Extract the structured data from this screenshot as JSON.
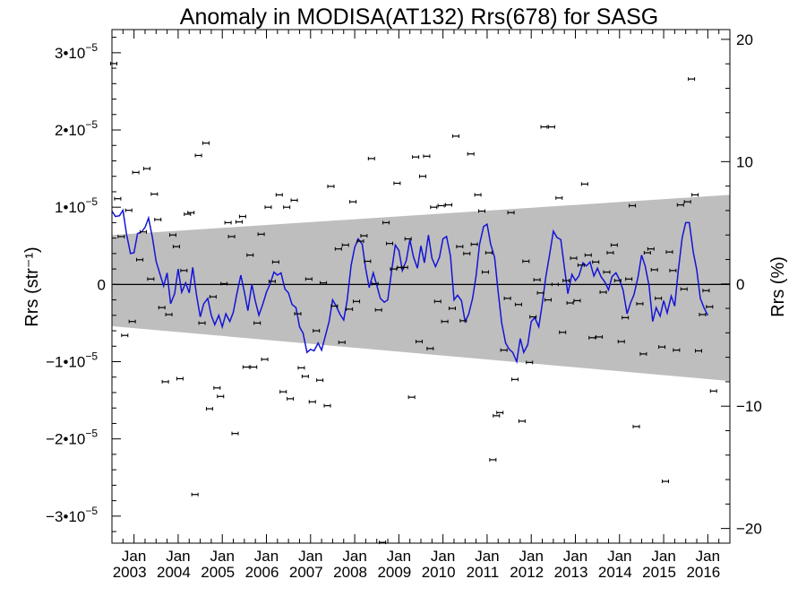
{
  "chart_data": {
    "type": "scatter",
    "title": "Anomaly in MODISA(AT132) Rrs(678) for SASG",
    "ylabel_left": "Rrs (str⁻¹)",
    "ylabel_right": "Rrs (%)",
    "xlim": [
      2002.5,
      2016.5
    ],
    "ylim": [
      -3.35e-05,
      3.3e-05
    ],
    "y2lim": [
      -21.2,
      20.8
    ],
    "x_ticks": [
      {
        "x": 2003.0,
        "month": "Jan",
        "year": "2003"
      },
      {
        "x": 2004.0,
        "month": "Jan",
        "year": "2004"
      },
      {
        "x": 2005.0,
        "month": "Jan",
        "year": "2005"
      },
      {
        "x": 2006.0,
        "month": "Jan",
        "year": "2006"
      },
      {
        "x": 2007.0,
        "month": "Jan",
        "year": "2007"
      },
      {
        "x": 2008.0,
        "month": "Jan",
        "year": "2008"
      },
      {
        "x": 2009.0,
        "month": "Jan",
        "year": "2009"
      },
      {
        "x": 2010.0,
        "month": "Jan",
        "year": "2010"
      },
      {
        "x": 2011.0,
        "month": "Jan",
        "year": "2011"
      },
      {
        "x": 2012.0,
        "month": "Jan",
        "year": "2012"
      },
      {
        "x": 2013.0,
        "month": "Jan",
        "year": "2013"
      },
      {
        "x": 2014.0,
        "month": "Jan",
        "year": "2014"
      },
      {
        "x": 2015.0,
        "month": "Jan",
        "year": "2015"
      },
      {
        "x": 2016.0,
        "month": "Jan",
        "year": "2016"
      }
    ],
    "y_ticks_left": [
      {
        "v": 3e-05,
        "base": "3•10",
        "exp": "−5"
      },
      {
        "v": 2e-05,
        "base": "2•10",
        "exp": "−5"
      },
      {
        "v": 1e-05,
        "base": "1•10",
        "exp": "−5"
      },
      {
        "v": 0,
        "base": "0",
        "exp": ""
      },
      {
        "v": -1e-05,
        "base": "−1•10",
        "exp": "−5"
      },
      {
        "v": -2e-05,
        "base": "−2•10",
        "exp": "−5"
      },
      {
        "v": -3e-05,
        "base": "−3•10",
        "exp": "−5"
      }
    ],
    "y_ticks_right": [
      {
        "v": 20,
        "label": "20"
      },
      {
        "v": 10,
        "label": "10"
      },
      {
        "v": 0,
        "label": "0"
      },
      {
        "v": -10,
        "label": "−10"
      },
      {
        "v": -20,
        "label": "−20"
      }
    ],
    "envelope": {
      "x": [
        2002.5,
        2016.5
      ],
      "upper": [
        6.4e-06,
        1.16e-05
      ],
      "lower": [
        -5.4e-06,
        -1.25e-05
      ]
    },
    "zero_line": 0,
    "points": [
      [
        2002.54,
        2.86e-05
      ],
      [
        2002.63,
        1.11e-05
      ],
      [
        2002.71,
        6.2e-06
      ],
      [
        2002.79,
        -6.6e-06
      ],
      [
        2002.88,
        9.6e-06
      ],
      [
        2002.96,
        -4.8e-06
      ],
      [
        2003.04,
        1.45e-05
      ],
      [
        2003.13,
        3.2e-06
      ],
      [
        2003.21,
        6.8e-06
      ],
      [
        2003.29,
        1.5e-05
      ],
      [
        2003.38,
        7e-07
      ],
      [
        2003.46,
        1.17e-05
      ],
      [
        2003.54,
        8.4e-06
      ],
      [
        2003.63,
        -3e-06
      ],
      [
        2003.71,
        -1.26e-05
      ],
      [
        2003.79,
        -3.9e-06
      ],
      [
        2003.88,
        6.4e-06
      ],
      [
        2003.96,
        4.9e-06
      ],
      [
        2004.04,
        -1.22e-05
      ],
      [
        2004.13,
        1.8e-06
      ],
      [
        2004.21,
        9.1e-06
      ],
      [
        2004.29,
        9.3e-06
      ],
      [
        2004.38,
        -2.72e-05
      ],
      [
        2004.46,
        1.67e-05
      ],
      [
        2004.54,
        -5e-06
      ],
      [
        2004.63,
        1.83e-05
      ],
      [
        2004.71,
        -1.61e-05
      ],
      [
        2004.79,
        -1.6e-06
      ],
      [
        2004.88,
        -1.34e-05
      ],
      [
        2004.96,
        -1.45e-05
      ],
      [
        2005.04,
        1e-07
      ],
      [
        2005.13,
        8e-06
      ],
      [
        2005.21,
        6.2e-06
      ],
      [
        2005.29,
        -1.93e-05
      ],
      [
        2005.38,
        8.1e-06
      ],
      [
        2005.46,
        8.8e-06
      ],
      [
        2005.54,
        -1.07e-05
      ],
      [
        2005.63,
        3.8e-06
      ],
      [
        2005.71,
        -1.07e-05
      ],
      [
        2005.79,
        -5e-06
      ],
      [
        2005.88,
        6.5e-06
      ],
      [
        2005.96,
        -9.7e-06
      ],
      [
        2006.04,
        1e-05
      ],
      [
        2006.13,
        4e-07
      ],
      [
        2006.21,
        2.9e-06
      ],
      [
        2006.29,
        1.16e-05
      ],
      [
        2006.38,
        -1.39e-05
      ],
      [
        2006.46,
        1e-05
      ],
      [
        2006.54,
        -1.48e-05
      ],
      [
        2006.63,
        1.09e-05
      ],
      [
        2006.71,
        -3.8e-06
      ],
      [
        2006.79,
        -1.08e-05
      ],
      [
        2006.88,
        -1.19e-05
      ],
      [
        2006.96,
        7e-07
      ],
      [
        2007.04,
        -1.52e-05
      ],
      [
        2007.13,
        -6e-06
      ],
      [
        2007.21,
        -1.24e-05
      ],
      [
        2007.29,
        2e-07
      ],
      [
        2007.38,
        -1.57e-05
      ],
      [
        2007.46,
        1.27e-05
      ],
      [
        2007.54,
        -2.8e-06
      ],
      [
        2007.63,
        4.6e-06
      ],
      [
        2007.71,
        -7.5e-06
      ],
      [
        2007.79,
        5.1e-06
      ],
      [
        2007.88,
        -3.2e-06
      ],
      [
        2007.96,
        1.07e-05
      ],
      [
        2008.04,
        -2.2e-06
      ],
      [
        2008.13,
        5.6e-06
      ],
      [
        2008.21,
        6.3e-06
      ],
      [
        2008.29,
        3e-06
      ],
      [
        2008.38,
        1.63e-05
      ],
      [
        2008.46,
        1e-07
      ],
      [
        2008.54,
        -3.3e-06
      ],
      [
        2008.63,
        -3.34e-05
      ],
      [
        2008.71,
        8e-06
      ],
      [
        2008.79,
        5.3e-06
      ],
      [
        2008.88,
        2e-06
      ],
      [
        2008.96,
        1.31e-05
      ],
      [
        2009.04,
        2.2e-06
      ],
      [
        2009.13,
        2.2e-06
      ],
      [
        2009.21,
        5.9e-06
      ],
      [
        2009.29,
        -1.46e-05
      ],
      [
        2009.38,
        1.65e-05
      ],
      [
        2009.46,
        -7.4e-06
      ],
      [
        2009.54,
        1.4e-05
      ],
      [
        2009.63,
        1.66e-05
      ],
      [
        2009.71,
        -8.3e-06
      ],
      [
        2009.79,
        1e-05
      ],
      [
        2009.88,
        -2.2e-06
      ],
      [
        2009.96,
        1.02e-05
      ],
      [
        2010.04,
        -4.8e-06
      ],
      [
        2010.13,
        1.03e-05
      ],
      [
        2010.21,
        -3.1e-06
      ],
      [
        2010.29,
        1.92e-05
      ],
      [
        2010.38,
        4.9e-06
      ],
      [
        2010.46,
        -4.7e-06
      ],
      [
        2010.54,
        4e-06
      ],
      [
        2010.63,
        1.69e-05
      ],
      [
        2010.71,
        5.2e-06
      ],
      [
        2010.79,
        1.16e-05
      ],
      [
        2010.88,
        9.5e-06
      ],
      [
        2010.96,
        1.6e-06
      ],
      [
        2011.04,
        4.1e-06
      ],
      [
        2011.13,
        -2.27e-05
      ],
      [
        2011.21,
        -1.7e-05
      ],
      [
        2011.29,
        -1.66e-05
      ],
      [
        2011.38,
        -8.5e-06
      ],
      [
        2011.46,
        -1.8e-06
      ],
      [
        2011.54,
        9.3e-06
      ],
      [
        2011.63,
        -1.23e-05
      ],
      [
        2011.71,
        -2.6e-06
      ],
      [
        2011.79,
        -1.77e-05
      ],
      [
        2011.88,
        3e-06
      ],
      [
        2011.96,
        -1.01e-05
      ],
      [
        2012.04,
        -4.2e-06
      ],
      [
        2012.13,
        6e-07
      ],
      [
        2012.21,
        -1.1e-06
      ],
      [
        2012.29,
        2.04e-05
      ],
      [
        2012.38,
        -2e-06
      ],
      [
        2012.46,
        2.04e-05
      ],
      [
        2012.54,
        0
      ],
      [
        2012.63,
        1.12e-05
      ],
      [
        2012.71,
        -6.2e-06
      ],
      [
        2012.79,
        5e-07
      ],
      [
        2012.88,
        -2.4e-06
      ],
      [
        2012.96,
        3.4e-06
      ],
      [
        2013.04,
        -2.1e-06
      ],
      [
        2013.13,
        2.5e-06
      ],
      [
        2013.21,
        1.3e-05
      ],
      [
        2013.29,
        3.8e-06
      ],
      [
        2013.38,
        -6.9e-06
      ],
      [
        2013.46,
        2.9e-06
      ],
      [
        2013.54,
        -6.8e-06
      ],
      [
        2013.63,
        -1e-06
      ],
      [
        2013.71,
        1.6e-06
      ],
      [
        2013.79,
        4.1e-06
      ],
      [
        2013.88,
        5.1e-06
      ],
      [
        2013.96,
        5e-07
      ],
      [
        2014.04,
        -7.4e-06
      ],
      [
        2014.13,
        -4.3e-06
      ],
      [
        2014.21,
        7e-07
      ],
      [
        2014.29,
        1.02e-05
      ],
      [
        2014.38,
        -1.84e-05
      ],
      [
        2014.46,
        -2.5e-06
      ],
      [
        2014.54,
        -9e-06
      ],
      [
        2014.63,
        4.1e-06
      ],
      [
        2014.71,
        4.6e-06
      ],
      [
        2014.79,
        1.9e-06
      ],
      [
        2014.88,
        -1.8e-06
      ],
      [
        2014.96,
        -8.1e-06
      ],
      [
        2015.04,
        -2.55e-05
      ],
      [
        2015.13,
        4.2e-06
      ],
      [
        2015.21,
        1.8e-06
      ],
      [
        2015.29,
        -8.5e-06
      ],
      [
        2015.38,
        1.03e-05
      ],
      [
        2015.46,
        -6e-07
      ],
      [
        2015.54,
        1.07e-05
      ],
      [
        2015.63,
        2.66e-05
      ],
      [
        2015.71,
        1.16e-05
      ],
      [
        2015.79,
        -8.6e-06
      ],
      [
        2015.88,
        -3.9e-06
      ],
      [
        2015.96,
        -8e-07
      ],
      [
        2016.04,
        -2.9e-06
      ],
      [
        2016.13,
        -1.38e-05
      ]
    ],
    "line": [
      [
        2002.5,
        9.5e-06
      ],
      [
        2002.58,
        8.8e-06
      ],
      [
        2002.67,
        8.9e-06
      ],
      [
        2002.75,
        9.6e-06
      ],
      [
        2002.83,
        6.5e-06
      ],
      [
        2002.92,
        4e-06
      ],
      [
        2003.0,
        4.1e-06
      ],
      [
        2003.08,
        6.6e-06
      ],
      [
        2003.17,
        6.8e-06
      ],
      [
        2003.25,
        7.4e-06
      ],
      [
        2003.33,
        8.6e-06
      ],
      [
        2003.42,
        6e-06
      ],
      [
        2003.5,
        3e-06
      ],
      [
        2003.58,
        1.5e-06
      ],
      [
        2003.67,
        -2e-07
      ],
      [
        2003.75,
        1.5e-06
      ],
      [
        2003.83,
        -2.5e-06
      ],
      [
        2003.92,
        -1.2e-06
      ],
      [
        2004.0,
        2e-06
      ],
      [
        2004.08,
        -1e-06
      ],
      [
        2004.17,
        2e-07
      ],
      [
        2004.25,
        -1.1e-06
      ],
      [
        2004.33,
        2.2e-06
      ],
      [
        2004.42,
        -1.5e-06
      ],
      [
        2004.5,
        -4.2e-06
      ],
      [
        2004.58,
        -2.5e-06
      ],
      [
        2004.67,
        -1.8e-06
      ],
      [
        2004.75,
        -4e-06
      ],
      [
        2004.83,
        -5.2e-06
      ],
      [
        2004.92,
        -4e-06
      ],
      [
        2005.0,
        -5.5e-06
      ],
      [
        2005.08,
        -3.8e-06
      ],
      [
        2005.17,
        -4.8e-06
      ],
      [
        2005.25,
        -3.6e-06
      ],
      [
        2005.33,
        -1.2e-06
      ],
      [
        2005.42,
        1.2e-06
      ],
      [
        2005.5,
        -1e-06
      ],
      [
        2005.58,
        -3.4e-06
      ],
      [
        2005.67,
        0
      ],
      [
        2005.75,
        -2.2e-06
      ],
      [
        2005.83,
        -4e-06
      ],
      [
        2005.92,
        -2.5e-06
      ],
      [
        2006.0,
        -1e-06
      ],
      [
        2006.08,
        0
      ],
      [
        2006.17,
        1.6e-06
      ],
      [
        2006.25,
        1.2e-06
      ],
      [
        2006.33,
        1.5e-06
      ],
      [
        2006.42,
        -6e-07
      ],
      [
        2006.5,
        -1.1e-06
      ],
      [
        2006.58,
        -2.6e-06
      ],
      [
        2006.67,
        -3e-06
      ],
      [
        2006.75,
        -5.5e-06
      ],
      [
        2006.83,
        -6.3e-06
      ],
      [
        2006.92,
        -8.8e-06
      ],
      [
        2007.0,
        -8.4e-06
      ],
      [
        2007.08,
        -8.6e-06
      ],
      [
        2007.17,
        -7.6e-06
      ],
      [
        2007.25,
        -8.5e-06
      ],
      [
        2007.33,
        -6.8e-06
      ],
      [
        2007.42,
        -4.8e-06
      ],
      [
        2007.5,
        -2e-06
      ],
      [
        2007.58,
        -2.8e-06
      ],
      [
        2007.67,
        -3.9e-06
      ],
      [
        2007.75,
        -4.6e-06
      ],
      [
        2007.83,
        -2e-06
      ],
      [
        2007.92,
        2.5e-06
      ],
      [
        2008.0,
        4.8e-06
      ],
      [
        2008.08,
        5.9e-06
      ],
      [
        2008.17,
        5.2e-06
      ],
      [
        2008.25,
        2e-06
      ],
      [
        2008.33,
        -4e-07
      ],
      [
        2008.42,
        1.5e-06
      ],
      [
        2008.5,
        -1e-07
      ],
      [
        2008.58,
        -1.8e-06
      ],
      [
        2008.67,
        -2.3e-06
      ],
      [
        2008.75,
        -2e-06
      ],
      [
        2008.83,
        1.5e-06
      ],
      [
        2008.92,
        5.1e-06
      ],
      [
        2009.0,
        4.4e-06
      ],
      [
        2009.08,
        1.8e-06
      ],
      [
        2009.17,
        3.1e-06
      ],
      [
        2009.25,
        5.8e-06
      ],
      [
        2009.33,
        3.6e-06
      ],
      [
        2009.42,
        2.1e-06
      ],
      [
        2009.5,
        5e-06
      ],
      [
        2009.58,
        2.8e-06
      ],
      [
        2009.67,
        6.4e-06
      ],
      [
        2009.75,
        3.4e-06
      ],
      [
        2009.83,
        2.3e-06
      ],
      [
        2009.92,
        3.5e-06
      ],
      [
        2010.0,
        5.9e-06
      ],
      [
        2010.08,
        6.2e-06
      ],
      [
        2010.17,
        3.7e-06
      ],
      [
        2010.25,
        -2e-06
      ],
      [
        2010.33,
        -1.4e-06
      ],
      [
        2010.42,
        -2.1e-06
      ],
      [
        2010.5,
        -4.8e-06
      ],
      [
        2010.58,
        -3.9e-06
      ],
      [
        2010.67,
        -1.8e-06
      ],
      [
        2010.75,
        1.1e-06
      ],
      [
        2010.83,
        5.2e-06
      ],
      [
        2010.92,
        7.5e-06
      ],
      [
        2011.0,
        7.8e-06
      ],
      [
        2011.08,
        5.2e-06
      ],
      [
        2011.17,
        3.5e-06
      ],
      [
        2011.25,
        -1e-06
      ],
      [
        2011.33,
        -5e-06
      ],
      [
        2011.42,
        -7.6e-06
      ],
      [
        2011.5,
        -8.4e-06
      ],
      [
        2011.58,
        -8.8e-06
      ],
      [
        2011.67,
        -1e-05
      ],
      [
        2011.75,
        -7e-06
      ],
      [
        2011.83,
        -8.8e-06
      ],
      [
        2011.92,
        -7.8e-06
      ],
      [
        2012.0,
        -4.8e-06
      ],
      [
        2012.08,
        -4.3e-06
      ],
      [
        2012.17,
        -5.5e-06
      ],
      [
        2012.25,
        -2.5e-06
      ],
      [
        2012.33,
        1e-06
      ],
      [
        2012.42,
        4e-06
      ],
      [
        2012.5,
        6.9e-06
      ],
      [
        2012.58,
        6.1e-06
      ],
      [
        2012.67,
        5.8e-06
      ],
      [
        2012.75,
        2.2e-06
      ],
      [
        2012.83,
        -1.2e-06
      ],
      [
        2012.92,
        1.3e-06
      ],
      [
        2013.0,
        5e-07
      ],
      [
        2013.08,
        1.1e-06
      ],
      [
        2013.17,
        2.8e-06
      ],
      [
        2013.25,
        2.4e-06
      ],
      [
        2013.33,
        2.9e-06
      ],
      [
        2013.42,
        1.1e-06
      ],
      [
        2013.5,
        2.1e-06
      ],
      [
        2013.58,
        1e-06
      ],
      [
        2013.67,
        3e-07
      ],
      [
        2013.75,
        -7e-07
      ],
      [
        2013.83,
        1e-06
      ],
      [
        2013.92,
        1.5e-06
      ],
      [
        2014.0,
        6e-07
      ],
      [
        2014.08,
        -7e-07
      ],
      [
        2014.17,
        -3.8e-06
      ],
      [
        2014.25,
        -2.4e-06
      ],
      [
        2014.33,
        -1.3e-06
      ],
      [
        2014.42,
        1e-06
      ],
      [
        2014.5,
        3.8e-06
      ],
      [
        2014.58,
        2.4e-06
      ],
      [
        2014.67,
        -2e-07
      ],
      [
        2014.75,
        -4.8e-06
      ],
      [
        2014.83,
        -3e-06
      ],
      [
        2014.92,
        -4.1e-06
      ],
      [
        2015.0,
        -2.1e-06
      ],
      [
        2015.08,
        -3.7e-06
      ],
      [
        2015.17,
        -1.5e-06
      ],
      [
        2015.25,
        -2.8e-06
      ],
      [
        2015.33,
        1.7e-06
      ],
      [
        2015.42,
        6.1e-06
      ],
      [
        2015.5,
        8e-06
      ],
      [
        2015.58,
        8e-06
      ],
      [
        2015.67,
        4.2e-06
      ],
      [
        2015.75,
        1.9e-06
      ],
      [
        2015.83,
        -1.8e-06
      ],
      [
        2015.92,
        -3.1e-06
      ],
      [
        2016.0,
        -4e-06
      ]
    ],
    "colors": {
      "line": "#1414d6",
      "envelope": "#bebebe",
      "points": "#000000",
      "zero_line": "#000000"
    },
    "grid": false
  }
}
